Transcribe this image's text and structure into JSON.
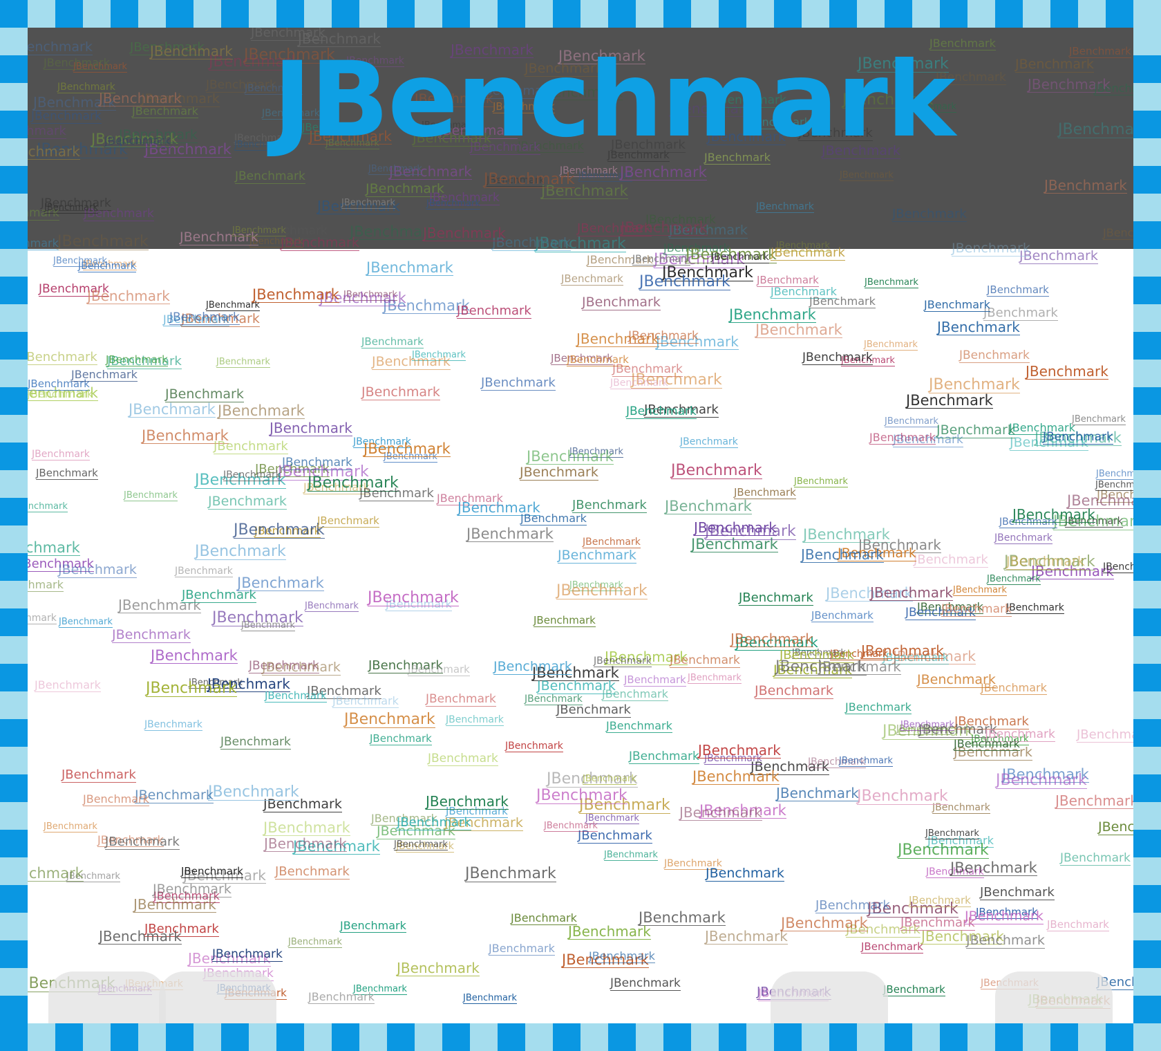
{
  "banner": {
    "title": "JBenchmark"
  },
  "word_cloud": {
    "word": "JBenchmark",
    "count": 430,
    "colors": [
      "#1a1a1a",
      "#2a2a2a",
      "#333333",
      "#1f3f7a",
      "#2d5fa8",
      "#4b7fc0",
      "#6a3fa0",
      "#8a3fb0",
      "#a04fc0",
      "#c060c0",
      "#b03060",
      "#c04040",
      "#c06030",
      "#d08030",
      "#c0a040",
      "#a0b030",
      "#80b040",
      "#40a040",
      "#208050",
      "#20a080",
      "#30b0b0",
      "#40a0d0",
      "#2060a0",
      "#606060",
      "#808080",
      "#a0a0a0",
      "#8a6a3a",
      "#6a8a3a",
      "#3a6a3a",
      "#8a4a6a",
      "#d08060",
      "#e0a0c0",
      "#90c0e0",
      "#b0d060"
    ]
  },
  "frame": {
    "dark": "#0a97e2",
    "light": "#a5ddee"
  },
  "header": {
    "band_color": "#5a5a5a"
  }
}
